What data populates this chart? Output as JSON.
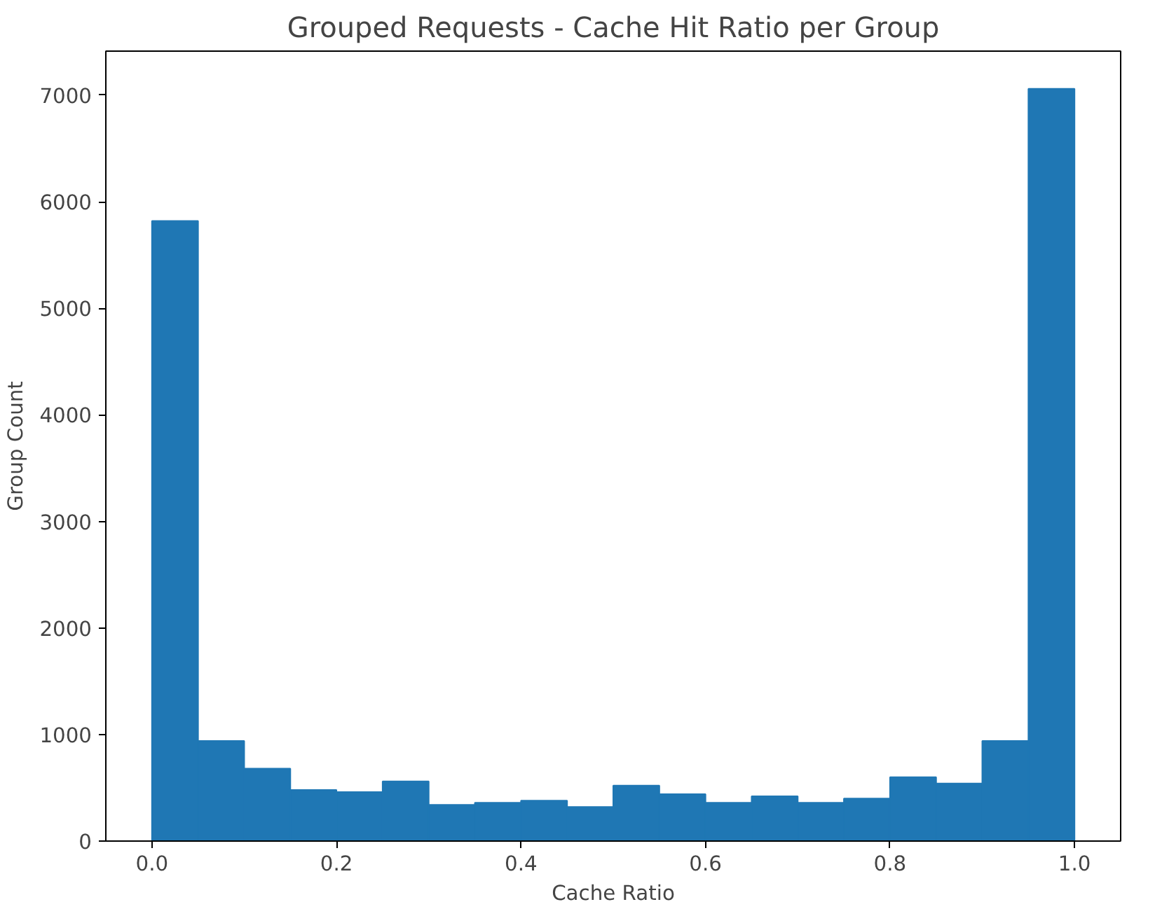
{
  "chart_data": {
    "type": "histogram",
    "title": "Grouped Requests - Cache Hit Ratio per Group",
    "xlabel": "Cache Ratio",
    "ylabel": "Group Count",
    "color": "#1f77b4",
    "bins": [
      0.0,
      0.05,
      0.1,
      0.15,
      0.2,
      0.25,
      0.3,
      0.35,
      0.4,
      0.45,
      0.5,
      0.55,
      0.6,
      0.65,
      0.7,
      0.75,
      0.8,
      0.85,
      0.9,
      0.95,
      1.0
    ],
    "values": [
      5820,
      940,
      680,
      480,
      460,
      560,
      340,
      360,
      380,
      320,
      520,
      440,
      360,
      420,
      360,
      400,
      600,
      540,
      940,
      7060
    ],
    "xlim": [
      -0.05,
      1.05
    ],
    "ylim": [
      0,
      7413
    ],
    "xticks": [
      {
        "value": 0,
        "label": "0.0"
      },
      0.2,
      0.4,
      0.6,
      0.8,
      {
        "value": 1,
        "label": "1.0"
      }
    ],
    "yticks": [
      0,
      1000,
      2000,
      3000,
      4000,
      5000,
      6000,
      7000
    ],
    "grid": false
  }
}
